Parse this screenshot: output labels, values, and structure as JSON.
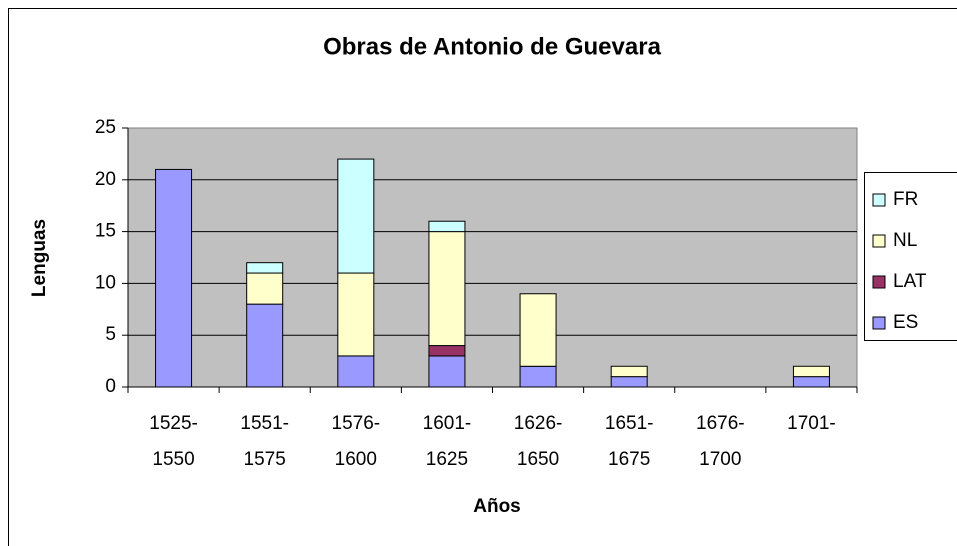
{
  "chart_data": {
    "type": "stacked_bar",
    "title": "Obras de Antonio de Guevara",
    "x_label": "Años",
    "y_label": "Lenguas",
    "categories": [
      "1525-1550",
      "1551-1575",
      "1576-1600",
      "1601-1625",
      "1626-1650",
      "1651-1675",
      "1676-1700",
      "1701-"
    ],
    "series": [
      {
        "name": "ES",
        "color": "#9999ff",
        "values": [
          21,
          8,
          3,
          3,
          2,
          1,
          0,
          1
        ]
      },
      {
        "name": "LAT",
        "color": "#993366",
        "values": [
          0,
          0,
          0,
          1,
          0,
          0,
          0,
          0
        ]
      },
      {
        "name": "NL",
        "color": "#ffffcc",
        "values": [
          0,
          3,
          8,
          11,
          7,
          1,
          0,
          1
        ]
      },
      {
        "name": "FR",
        "color": "#ccffff",
        "values": [
          0,
          1,
          11,
          1,
          0,
          0,
          0,
          0
        ]
      }
    ],
    "ylim": [
      0,
      25
    ],
    "yticks": [
      0,
      5,
      10,
      15,
      20,
      25
    ],
    "grid": true,
    "legend": "right"
  }
}
